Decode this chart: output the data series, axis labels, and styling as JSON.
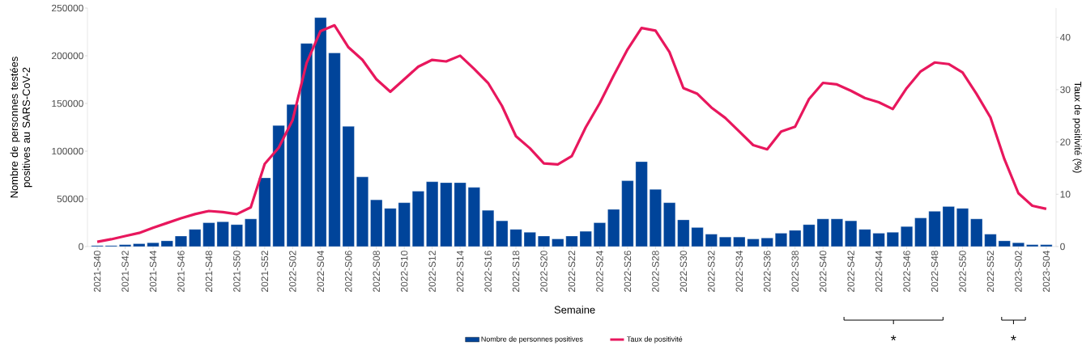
{
  "chart_data": {
    "type": "bar",
    "xlabel": "Semaine",
    "ylabel": "Nombre de personnes testées positives au SARS-CoV-2",
    "y2label": "Taux de positivité (%)",
    "categories": [
      "2021-S40",
      null,
      "2021-S42",
      null,
      "2021-S44",
      null,
      "2021-S46",
      null,
      "2021-S48",
      null,
      "2021-S50",
      null,
      "2021-S52",
      null,
      "2022-S02",
      null,
      "2022-S04",
      null,
      "2022-S06",
      null,
      "2022-S08",
      null,
      "2022-S10",
      null,
      "2022-S12",
      null,
      "2022-S14",
      null,
      "2022-S16",
      null,
      "2022-S18",
      null,
      "2022-S20",
      null,
      "2022-S22",
      null,
      "2022-S24",
      null,
      "2022-S26",
      null,
      "2022-S28",
      null,
      "2022-S30",
      null,
      "2022-S32",
      null,
      "2022-S34",
      null,
      "2022-S36",
      null,
      "2022-S38",
      null,
      "2022-S40",
      null,
      "2022-S42",
      null,
      "2022-S44",
      null,
      "2022-S46",
      null,
      "2022-S48",
      null,
      "2022-S50",
      null,
      "2022-S52",
      null,
      "2023-S02",
      null,
      "2023-S04"
    ],
    "series": [
      {
        "name": "Nombre de personnes positives",
        "color": "#00449a",
        "values": [
          1000,
          1000,
          2000,
          3000,
          4000,
          6000,
          11000,
          18000,
          25000,
          26000,
          23000,
          29000,
          72000,
          127000,
          149000,
          213000,
          240000,
          203000,
          126000,
          73000,
          49000,
          40000,
          46000,
          58000,
          68000,
          67000,
          67000,
          62000,
          38000,
          27000,
          18000,
          15000,
          11000,
          8000,
          11000,
          16000,
          25000,
          39000,
          69000,
          89000,
          60000,
          46000,
          28000,
          20000,
          13000,
          10000,
          10000,
          8000,
          9000,
          14000,
          17000,
          23000,
          29000,
          29000,
          27000,
          18000,
          14000,
          15000,
          21000,
          30000,
          37000,
          42000,
          40000,
          29000,
          13000,
          6000,
          4000,
          2000,
          2000
        ]
      },
      {
        "name": "Taux de positivité",
        "type": "line",
        "axis": "y2",
        "color": "#e8175d",
        "values": [
          0.9,
          1.4,
          2.0,
          2.6,
          3.6,
          4.5,
          5.4,
          6.2,
          6.8,
          6.6,
          6.2,
          7.5,
          15.8,
          18.9,
          24.2,
          35.1,
          41.2,
          42.3,
          38.1,
          35.7,
          32.0,
          29.6,
          32.0,
          34.4,
          35.7,
          35.4,
          36.5,
          34.0,
          31.3,
          26.9,
          21.1,
          18.8,
          15.9,
          15.7,
          17.3,
          22.8,
          27.4,
          32.7,
          37.7,
          41.8,
          41.3,
          37.2,
          30.3,
          29.2,
          26.6,
          24.6,
          22.0,
          19.4,
          18.6,
          22.0,
          22.9,
          28.2,
          31.3,
          31.0,
          29.8,
          28.4,
          27.6,
          26.3,
          30.3,
          33.5,
          35.2,
          34.9,
          33.3,
          29.2,
          24.7,
          16.7,
          10.2,
          7.8,
          7.2
        ]
      }
    ],
    "ylim": [
      0,
      250000
    ],
    "yticks": [
      0,
      50000,
      100000,
      150000,
      200000,
      250000
    ],
    "y2lim": [
      0,
      45.6
    ],
    "y2ticks": [
      0,
      10,
      20,
      30,
      40
    ],
    "legend": "bottom",
    "annotations": [
      "*",
      "*"
    ]
  }
}
